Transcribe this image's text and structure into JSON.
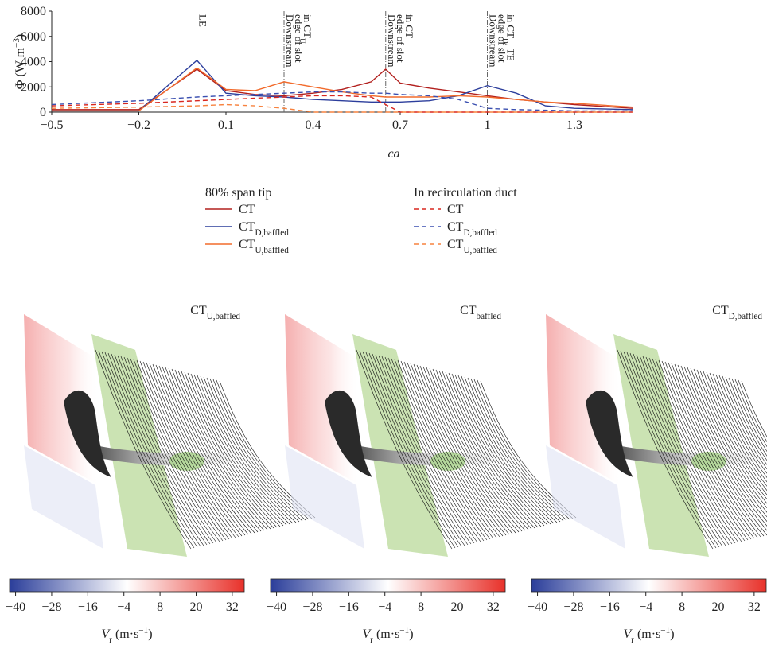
{
  "chart_data": [
    {
      "type": "line",
      "x": [
        -0.5,
        -0.2,
        0,
        0.1,
        0.2,
        0.3,
        0.4,
        0.5,
        0.6,
        0.65,
        0.7,
        0.8,
        0.9,
        1.0,
        1.1,
        1.2,
        1.3,
        1.5
      ],
      "xlim": [
        -0.5,
        1.5
      ],
      "xticks": [
        {
          "value": -0.5,
          "label": "−0.5"
        },
        {
          "value": -0.2,
          "label": "−0.2"
        },
        0.1,
        0.4,
        0.7,
        1,
        1.3
      ],
      "ylim": [
        0,
        8000
      ],
      "yticks": [
        0,
        2000,
        4000,
        6000,
        8000
      ],
      "xlabel": "ca",
      "ylabel": {
        "text": "Φ (W m",
        "sup": "−3",
        "close": ")"
      },
      "legend_groups": [
        "80% span tip",
        "In recirculation duct"
      ],
      "annotations": [
        {
          "x": 0,
          "lines": [
            {
              "text": "LE"
            }
          ]
        },
        {
          "x": 0.3,
          "lines": [
            {
              "text": "Downstream"
            },
            {
              "text": "edge of slot"
            },
            {
              "text": "in CT",
              "sub": "U"
            }
          ]
        },
        {
          "x": 0.65,
          "lines": [
            {
              "text": "Downstream"
            },
            {
              "text": "edge of slot"
            },
            {
              "text": "in CT"
            }
          ]
        },
        {
          "x": 1,
          "lines": [
            {
              "text": "Downstream"
            },
            {
              "text": "edge of slot"
            },
            {
              "text": "in CT",
              "sub": "D",
              "after": ", TE"
            }
          ]
        }
      ],
      "series": [
        {
          "name": "CT",
          "group": 0,
          "linestyle": "solid",
          "color": "#b2201e",
          "values": [
            200,
            200,
            3400,
            1700,
            1400,
            1300,
            1500,
            1800,
            2400,
            3400,
            2300,
            1900,
            1600,
            1300,
            1000,
            800,
            600,
            300
          ]
        },
        {
          "name": "CT",
          "subscript": "D,baffled",
          "group": 0,
          "linestyle": "solid",
          "color": "#2c3e9c",
          "values": [
            100,
            100,
            4100,
            1500,
            1300,
            1200,
            1000,
            900,
            800,
            800,
            800,
            900,
            1300,
            2100,
            1500,
            500,
            300,
            200
          ]
        },
        {
          "name": "CT",
          "subscript": "U,baffled",
          "group": 0,
          "linestyle": "solid",
          "color": "#f26b2c",
          "values": [
            100,
            100,
            3500,
            1800,
            1700,
            2400,
            2000,
            1600,
            1300,
            1200,
            1200,
            1200,
            1300,
            1200,
            1000,
            800,
            700,
            400
          ]
        },
        {
          "name": "CT",
          "group": 1,
          "linestyle": "dashed",
          "color": "#d8261f",
          "values": [
            500,
            700,
            900,
            1000,
            1100,
            1200,
            1300,
            1300,
            1200,
            600,
            0,
            0,
            0,
            0,
            0,
            0,
            0,
            0
          ]
        },
        {
          "name": "CT",
          "subscript": "D,baffled",
          "group": 1,
          "linestyle": "dashed",
          "color": "#3a4fb0",
          "values": [
            600,
            900,
            1200,
            1300,
            1400,
            1500,
            1600,
            1600,
            1500,
            1500,
            1400,
            1300,
            1000,
            300,
            200,
            150,
            100,
            100
          ]
        },
        {
          "name": "CT",
          "subscript": "U,baffled",
          "group": 1,
          "linestyle": "dashed",
          "color": "#f7823e",
          "values": [
            300,
            400,
            500,
            600,
            500,
            300,
            0,
            0,
            0,
            0,
            0,
            0,
            0,
            0,
            0,
            0,
            0,
            0
          ]
        }
      ]
    },
    {
      "type": "colorbar",
      "title": {
        "base": "CT",
        "sub": "U,baffled"
      },
      "xlim": [
        -42,
        36
      ],
      "xticks": [
        {
          "value": -40,
          "label": "−40"
        },
        {
          "value": -28,
          "label": "−28"
        },
        {
          "value": -16,
          "label": "−16"
        },
        {
          "value": -4,
          "label": "−4"
        },
        8,
        20,
        32
      ],
      "colors": [
        "#2b3e9a",
        "#ffffff",
        "#e8312a"
      ],
      "xlabel": {
        "symbol": "V",
        "sub": "r",
        "unit": " (m·s",
        "sup": "−1",
        "close": ")"
      }
    },
    {
      "type": "colorbar",
      "title": {
        "base": "CT",
        "sub": "baffled"
      },
      "xlim": [
        -42,
        36
      ],
      "xticks": [
        {
          "value": -40,
          "label": "−40"
        },
        {
          "value": -28,
          "label": "−28"
        },
        {
          "value": -16,
          "label": "−16"
        },
        {
          "value": -4,
          "label": "−4"
        },
        8,
        20,
        32
      ],
      "colors": [
        "#2b3e9a",
        "#ffffff",
        "#e8312a"
      ],
      "xlabel": {
        "symbol": "V",
        "sub": "r",
        "unit": " (m·s",
        "sup": "−1",
        "close": ")"
      }
    },
    {
      "type": "colorbar",
      "title": {
        "base": "CT",
        "sub": "D,baffled"
      },
      "xlim": [
        -42,
        36
      ],
      "xticks": [
        {
          "value": -40,
          "label": "−40"
        },
        {
          "value": -28,
          "label": "−28"
        },
        {
          "value": -16,
          "label": "−16"
        },
        {
          "value": -4,
          "label": "−4"
        },
        8,
        20,
        32
      ],
      "colors": [
        "#2b3e9a",
        "#ffffff",
        "#e8312a"
      ],
      "xlabel": {
        "symbol": "V",
        "sub": "r",
        "unit": " (m·s",
        "sup": "−1",
        "close": ")"
      }
    }
  ]
}
